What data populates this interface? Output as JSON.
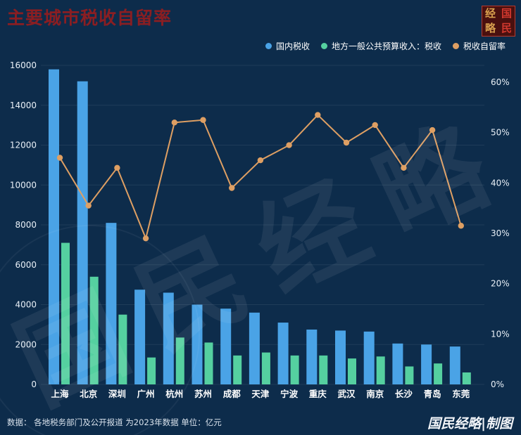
{
  "header": {
    "title": "主要城市税收自留率",
    "logo_chars": [
      "经",
      "国",
      "略",
      "民"
    ]
  },
  "legend": [
    {
      "label": "国内税收",
      "color": "#4aa3e6"
    },
    {
      "label": "地方一般公共预算收入：税收",
      "color": "#55d0a0"
    },
    {
      "label": "税收自留率",
      "color": "#de9f63"
    }
  ],
  "footer": {
    "source": "数据： 各地税务部门及公开报道 为2023年数据 单位：亿元",
    "credit": "国民经略|制图"
  },
  "watermark": "国民经略",
  "colors": {
    "background": "#0d2c4b",
    "title": "#8a1e22",
    "bar_blue": "#4aa3e6",
    "bar_green": "#55d0a0",
    "line_orange": "#de9f63",
    "axis_text": "#e9f0f7",
    "x_label_text": "#ffffff",
    "grid": "rgba(255,255,255,0.08)"
  },
  "chart_data": {
    "type": "bar+line",
    "title": "主要城市税收自留率",
    "unit": "亿元",
    "categories": [
      "上海",
      "北京",
      "深圳",
      "广州",
      "杭州",
      "苏州",
      "成都",
      "天津",
      "宁波",
      "重庆",
      "武汉",
      "南京",
      "长沙",
      "青岛",
      "东莞"
    ],
    "series": [
      {
        "name": "国内税收",
        "type": "bar",
        "axis": "left",
        "color": "#4aa3e6",
        "values": [
          15800,
          15200,
          8100,
          4750,
          4600,
          4000,
          3800,
          3600,
          3100,
          2750,
          2700,
          2650,
          2050,
          2000,
          1900
        ]
      },
      {
        "name": "地方一般公共预算收入：税收",
        "type": "bar",
        "axis": "left",
        "color": "#55d0a0",
        "values": [
          7100,
          5400,
          3500,
          1350,
          2350,
          2100,
          1450,
          1600,
          1450,
          1450,
          1300,
          1400,
          900,
          1050,
          600
        ]
      },
      {
        "name": "税收自留率",
        "type": "line",
        "axis": "right",
        "color": "#de9f63",
        "values_percent": [
          45,
          35.5,
          43,
          29,
          52,
          52.5,
          39,
          44.5,
          47.5,
          53.5,
          48,
          51.5,
          43,
          50.5,
          31.5
        ]
      }
    ],
    "left_axis": {
      "min": 0,
      "max": 16000,
      "step": 2000
    },
    "right_axis": {
      "min": 0,
      "max": 60,
      "step": 10,
      "suffix": "%"
    },
    "legend_position": "top-right",
    "grid": "horizontal"
  }
}
